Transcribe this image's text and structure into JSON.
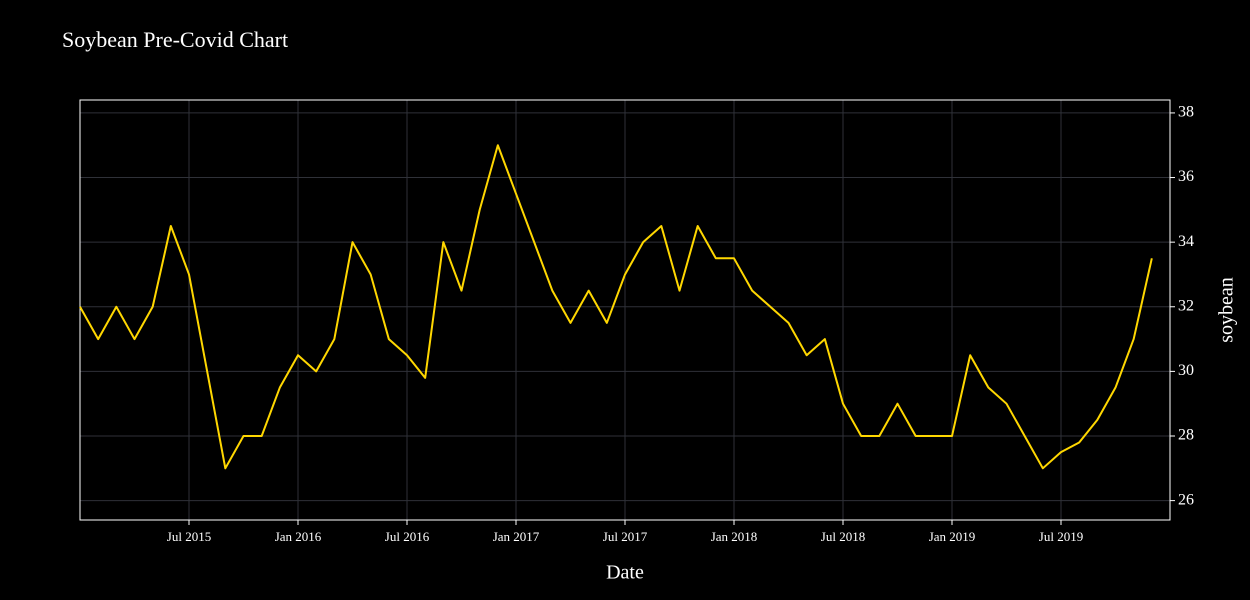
{
  "chart_data": {
    "type": "line",
    "title": "Soybean Pre-Covid Chart",
    "x_label": "Date",
    "y_label": "soybean",
    "color": "#ffd700",
    "grid": true,
    "y_axis_side": "right",
    "x": [
      "2015-01",
      "2015-02",
      "2015-03",
      "2015-04",
      "2015-05",
      "2015-06",
      "2015-07",
      "2015-08",
      "2015-09",
      "2015-10",
      "2015-11",
      "2015-12",
      "2016-01",
      "2016-02",
      "2016-03",
      "2016-04",
      "2016-05",
      "2016-06",
      "2016-07",
      "2016-08",
      "2016-09",
      "2016-10",
      "2016-11",
      "2016-12",
      "2017-01",
      "2017-02",
      "2017-03",
      "2017-04",
      "2017-05",
      "2017-06",
      "2017-07",
      "2017-08",
      "2017-09",
      "2017-10",
      "2017-11",
      "2017-12",
      "2018-01",
      "2018-02",
      "2018-03",
      "2018-04",
      "2018-05",
      "2018-06",
      "2018-07",
      "2018-08",
      "2018-09",
      "2018-10",
      "2018-11",
      "2018-12",
      "2019-01",
      "2019-02",
      "2019-03",
      "2019-04",
      "2019-05",
      "2019-06",
      "2019-07",
      "2019-08",
      "2019-09",
      "2019-10",
      "2019-11",
      "2019-12"
    ],
    "values": [
      32,
      31,
      32,
      31,
      32,
      34.5,
      33,
      30,
      27,
      28,
      28,
      29.5,
      30.5,
      30,
      31,
      34,
      33,
      31,
      30.5,
      29.8,
      34,
      32.5,
      35,
      37,
      35.5,
      34,
      32.5,
      31.5,
      32.5,
      31.5,
      33,
      34,
      34.5,
      32.5,
      34.5,
      33.5,
      33.5,
      32.5,
      32,
      31.5,
      30.5,
      31,
      29,
      28,
      28,
      29,
      28,
      28,
      28,
      30.5,
      29.5,
      29,
      28,
      27,
      27.5,
      27.8,
      28.5,
      29.5,
      31,
      33.5
    ],
    "xlim": [
      "2015-01",
      "2020-01"
    ],
    "xticks": [
      {
        "value": "2015-07",
        "label": "Jul 2015"
      },
      {
        "value": "2016-01",
        "label": "Jan 2016"
      },
      {
        "value": "2016-07",
        "label": "Jul 2016"
      },
      {
        "value": "2017-01",
        "label": "Jan 2017"
      },
      {
        "value": "2017-07",
        "label": "Jul 2017"
      },
      {
        "value": "2018-01",
        "label": "Jan 2018"
      },
      {
        "value": "2018-07",
        "label": "Jul 2018"
      },
      {
        "value": "2019-01",
        "label": "Jan 2019"
      },
      {
        "value": "2019-07",
        "label": "Jul 2019"
      }
    ],
    "ylim": [
      25.4,
      38.4
    ],
    "yticks": [
      26,
      28,
      30,
      32,
      34,
      36,
      38
    ]
  }
}
